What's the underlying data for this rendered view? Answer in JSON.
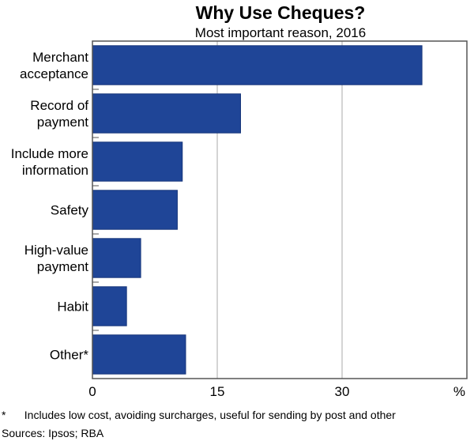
{
  "chart_data": {
    "type": "bar",
    "orientation": "horizontal",
    "title": "Why Use Cheques?",
    "subtitle": "Most important reason, 2016",
    "categories": [
      [
        "Merchant",
        "acceptance"
      ],
      [
        "Record of",
        "payment"
      ],
      [
        "Include more",
        "information"
      ],
      [
        "Safety"
      ],
      [
        "High-value",
        "payment"
      ],
      [
        "Habit"
      ],
      [
        "Other*"
      ]
    ],
    "values": [
      39.6,
      17.8,
      10.8,
      10.2,
      5.8,
      4.1,
      11.2
    ],
    "xlim": [
      0,
      45
    ],
    "xticks": [
      0,
      15,
      30
    ],
    "xunit": "%",
    "grid": true,
    "bar_color": "#1f4597",
    "footnote": "*      Includes low cost, avoiding surcharges, useful for sending by post and other",
    "sources": "Sources: Ipsos; RBA"
  }
}
